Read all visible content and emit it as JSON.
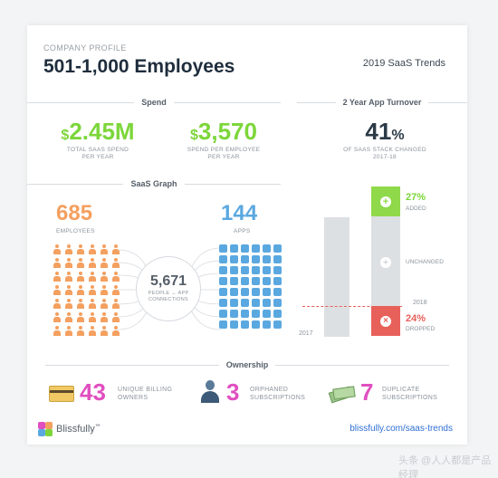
{
  "header": {
    "kicker": "COMPANY PROFILE",
    "title": "501-1,000 Employees",
    "trends": "2019 SaaS Trends"
  },
  "spend": {
    "section_label": "Spend",
    "total": {
      "currency": "$",
      "value": "2.45M",
      "caption_line1": "TOTAL SAAS SPEND",
      "caption_line2": "PER YEAR"
    },
    "per_employee": {
      "currency": "$",
      "value": "3,570",
      "caption_line1": "SPEND PER EMPLOYEE",
      "caption_line2": "PER YEAR"
    }
  },
  "turnover": {
    "section_label": "2 Year App Turnover",
    "value": "41",
    "percent": "%",
    "caption_line1": "OF SAAS STACK CHANGED",
    "caption_line2": "2017-18",
    "added_pct": "27%",
    "added_label": "ADDED",
    "unchanged_label": "UNCHANGED",
    "dropped_pct": "24%",
    "dropped_label": "DROPPED",
    "year_2018": "2018",
    "year_2017": "2017",
    "colors": {
      "added": "#8fd94a",
      "dropped": "#e8605a",
      "bar": "#dde0e3"
    }
  },
  "graph": {
    "section_label": "SaaS Graph",
    "employees_value": "685",
    "employees_label": "EMPLOYEES",
    "apps_value": "144",
    "apps_label": "APPS",
    "connections_value": "5,671",
    "connections_line1": "PEOPLE ↔ APP",
    "connections_line2": "CONNECTIONS"
  },
  "ownership": {
    "section_label": "Ownership",
    "items": [
      {
        "icon": "credit-card-icon",
        "value": "43",
        "line1": "UNIQUE BILLING",
        "line2": "OWNERS"
      },
      {
        "icon": "person-icon",
        "value": "3",
        "line1": "ORPHANED",
        "line2": "SUBSCRIPTIONS"
      },
      {
        "icon": "money-icon",
        "value": "7",
        "line1": "DUPLICATE",
        "line2": "SUBSCRIPTIONS"
      }
    ]
  },
  "footer": {
    "brand": "Blissfully",
    "tm": "™",
    "url": "blissfully.com/saas-trends",
    "watermark": "头条 @人人都是产品经理"
  }
}
